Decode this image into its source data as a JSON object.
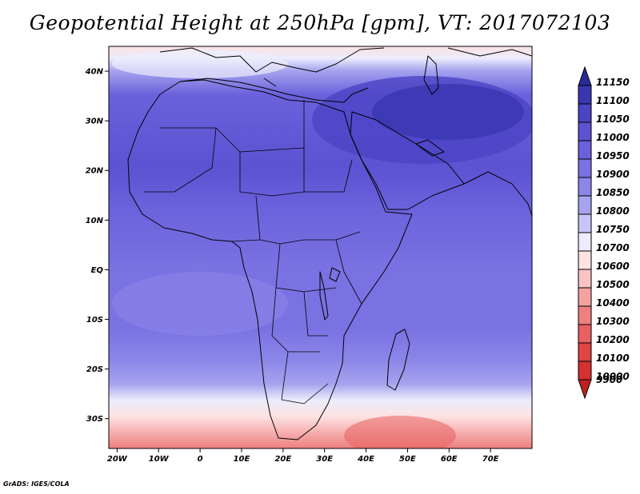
{
  "title": "Geopotential Height at 250hPa [gpm], VT: 2017072103",
  "credit": "GrADS: IGES/COLA",
  "lat_labels": [
    "40N",
    "30N",
    "20N",
    "10N",
    "EQ",
    "10S",
    "20S",
    "30S"
  ],
  "lat_values": [
    40,
    30,
    20,
    10,
    0,
    -10,
    -20,
    -30
  ],
  "lon_labels": [
    "20W",
    "10W",
    "0",
    "10E",
    "20E",
    "30E",
    "40E",
    "50E",
    "60E",
    "70E"
  ],
  "lon_values": [
    -20,
    -10,
    0,
    10,
    20,
    30,
    40,
    50,
    60,
    70
  ],
  "map_extent": {
    "lon_min": -22,
    "lon_max": 80,
    "lat_min": -36,
    "lat_max": 45
  },
  "colorbar": {
    "levels": [
      "11150",
      "11100",
      "11050",
      "11000",
      "10950",
      "10900",
      "10850",
      "10800",
      "10750",
      "10700",
      "10600",
      "10500",
      "10400",
      "10300",
      "10200",
      "10100",
      "10000",
      "9900"
    ],
    "colors": [
      "#2a2a9a",
      "#3a36b0",
      "#4b44c4",
      "#5c52d2",
      "#6b61dc",
      "#7a71e2",
      "#8c86e8",
      "#a7a3ee",
      "#c7c5f6",
      "#ececfc",
      "#fde2e2",
      "#f9c3c3",
      "#f4a2a2",
      "#ee8080",
      "#e86060",
      "#e14444",
      "#d63030",
      "#c02020"
    ]
  }
}
